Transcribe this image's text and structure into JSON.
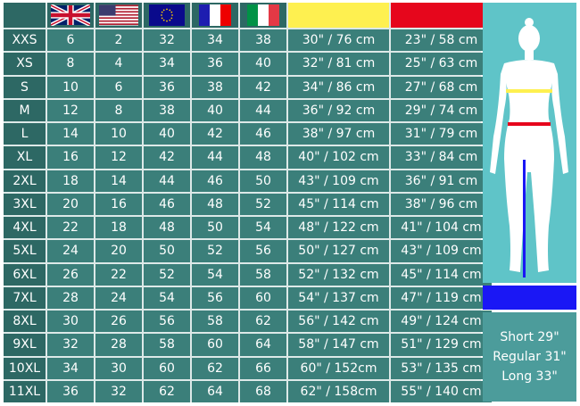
{
  "header": {
    "flags": [
      "uk-flag",
      "us-flag",
      "eu-flag",
      "france-flag",
      "italy-flag"
    ],
    "measure_colors": {
      "hip": "#fef050",
      "waist": "#e6061c",
      "inseam": "#1a17f5"
    }
  },
  "rows": [
    [
      "XXS",
      "6",
      "2",
      "32",
      "34",
      "38",
      "30\" / 76 cm",
      "23\" / 58 cm"
    ],
    [
      "XS",
      "8",
      "4",
      "34",
      "36",
      "40",
      "32\" / 81 cm",
      "25\" / 63 cm"
    ],
    [
      "S",
      "10",
      "6",
      "36",
      "38",
      "42",
      "34\" / 86 cm",
      "27\" / 68 cm"
    ],
    [
      "M",
      "12",
      "8",
      "38",
      "40",
      "44",
      "36\" / 92 cm",
      "29\" / 74 cm"
    ],
    [
      "L",
      "14",
      "10",
      "40",
      "42",
      "46",
      "38\" / 97 cm",
      "31\" / 79 cm"
    ],
    [
      "XL",
      "16",
      "12",
      "42",
      "44",
      "48",
      "40\" / 102 cm",
      "33\" / 84 cm"
    ],
    [
      "2XL",
      "18",
      "14",
      "44",
      "46",
      "50",
      "43\" / 109 cm",
      "36\" / 91 cm"
    ],
    [
      "3XL",
      "20",
      "16",
      "46",
      "48",
      "52",
      "45\" / 114 cm",
      "38\" / 96 cm"
    ],
    [
      "4XL",
      "22",
      "18",
      "48",
      "50",
      "54",
      "48\" / 122 cm",
      "41\" / 104 cm"
    ],
    [
      "5XL",
      "24",
      "20",
      "50",
      "52",
      "56",
      "50\" / 127 cm",
      "43\" / 109 cm"
    ],
    [
      "6XL",
      "26",
      "22",
      "52",
      "54",
      "58",
      "52\" / 132 cm",
      "45\" / 114 cm"
    ],
    [
      "7XL",
      "28",
      "24",
      "54",
      "56",
      "60",
      "54\" / 137 cm",
      "47\" / 119 cm"
    ],
    [
      "8XL",
      "30",
      "26",
      "56",
      "58",
      "62",
      "56\" / 142 cm",
      "49\" / 124 cm"
    ],
    [
      "9XL",
      "32",
      "28",
      "58",
      "60",
      "64",
      "58\" / 147 cm",
      "51\" / 129 cm"
    ],
    [
      "10XL",
      "34",
      "30",
      "60",
      "62",
      "66",
      "60\" / 152cm",
      "53\" / 135 cm"
    ],
    [
      "11XL",
      "36",
      "32",
      "62",
      "64",
      "68",
      "62\" / 158cm",
      "55\" / 140 cm"
    ]
  ],
  "lengths": [
    "Short 29\"",
    "Regular 31\"",
    "Long 33\""
  ]
}
